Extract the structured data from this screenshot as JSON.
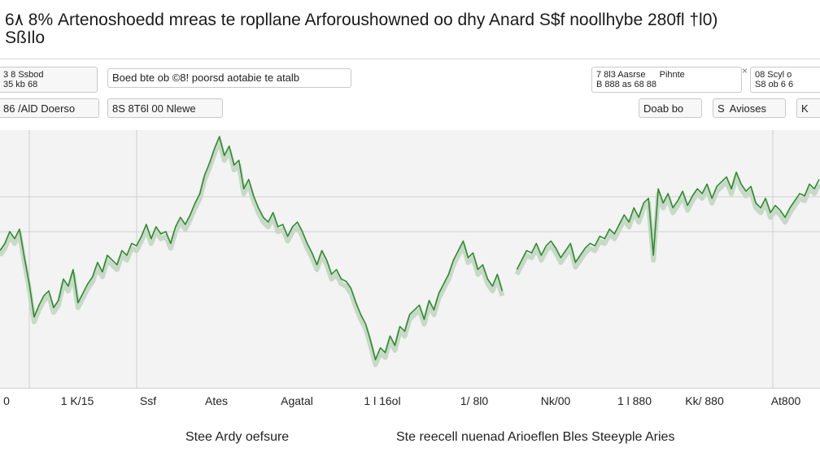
{
  "title_line1": "6٨ 8% Artenoshoedd mreas te ropllane Arforoushowned oo dhy Anard S$f noollhybe 280fl †l0)",
  "title_line2": "SßIlo",
  "toolbar": {
    "left_box_line1": "3 8 Ssbod",
    "left_box_line2": "35 kb 68",
    "search_value": "Boed bte ob ©8! poorsd aotabie te atalb",
    "left_button": "86 /AlD Doerso",
    "range_button": "8S 8T6l 00 Nlewe",
    "mid_label_line1": "7 8l3 Aasrse",
    "mid_label_line2": "B 888 as 68 88",
    "mid_label_right": "Pihnte",
    "right_box_line1": "08 Scyl o",
    "right_box_line2": "S8 ob 6 6",
    "btn_a": "Doab bo",
    "btn_b": "Avioses",
    "btn_b_prefix": "S",
    "btn_c": "K",
    "close_glyph": "×"
  },
  "captions": {
    "left": "Stee Ardy oefsure",
    "right": "Ste reecell nuenad Arioeflen Bles Steeyple Aries"
  },
  "colors": {
    "line": "#2e8b2e",
    "shade": "#c7d9c7",
    "plot_bg": "#f3f3f3",
    "grid": "#cfcfcf"
  },
  "chart_data": {
    "type": "line",
    "title": "6٨ 8% Artenoshoedd mreas te ropllane Arforoushowned oo dhy Anard S$f noollhybe 280fl †l0)",
    "xlabel": "",
    "ylabel": "",
    "x_tick_labels": [
      "0",
      "1 K/15",
      "Ssf",
      "Ates",
      "Agatal",
      "1 l 16ol",
      "1/ 8l0",
      "Nk/00",
      "1 l 880",
      "Kk/ 880",
      "At800"
    ],
    "grid": true,
    "ylim": [
      0,
      100
    ],
    "series": [
      {
        "values": [
          52,
          55,
          60,
          57,
          61,
          49,
          38,
          24,
          29,
          33,
          35,
          28,
          31,
          40,
          37,
          44,
          30,
          34,
          38,
          41,
          47,
          43,
          50,
          48,
          46,
          52,
          50,
          55,
          54,
          58,
          63,
          57,
          62,
          59,
          60,
          55,
          62,
          66,
          63,
          67,
          72,
          76,
          84,
          89,
          95,
          100,
          92,
          96,
          88,
          90,
          78,
          82,
          75,
          70,
          66,
          64,
          68,
          62,
          63,
          58,
          62,
          64,
          60,
          55,
          51,
          46,
          52,
          48,
          42,
          44,
          40,
          39,
          36,
          30,
          25,
          21,
          14,
          6,
          11,
          9,
          16,
          12,
          20,
          18,
          25,
          27,
          29,
          23,
          31,
          27,
          34,
          38,
          42,
          48,
          52,
          56,
          49,
          51,
          44,
          46,
          40,
          37,
          42,
          35,
          null,
          null,
          44,
          48,
          52,
          51,
          55,
          50,
          54,
          56,
          53,
          49,
          52,
          55,
          47,
          50,
          53,
          55,
          54,
          58,
          57,
          61,
          59,
          63,
          67,
          64,
          70,
          66,
          72,
          74,
          50,
          78,
          72,
          76,
          70,
          73,
          77,
          71,
          75,
          78,
          76,
          80,
          74,
          79,
          81,
          83,
          78,
          85,
          80,
          77,
          79,
          72,
          70,
          74,
          68,
          71,
          69,
          66,
          70,
          73,
          76,
          75,
          80,
          78,
          82
        ]
      }
    ]
  }
}
